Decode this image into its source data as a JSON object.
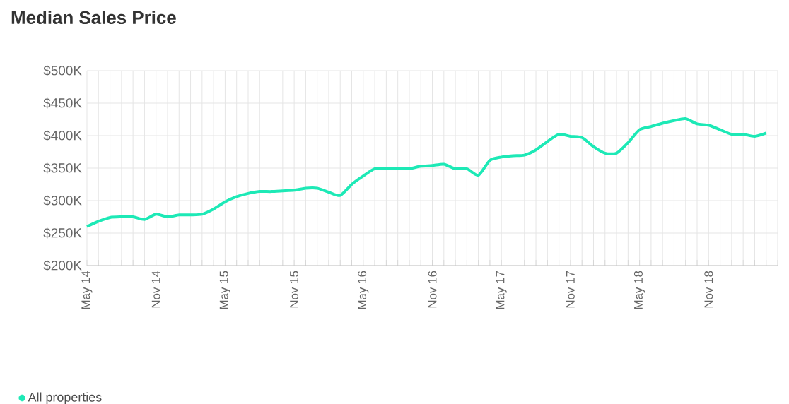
{
  "chart_data": {
    "type": "line",
    "title": "Median Sales Price",
    "x": [
      "2014-05",
      "2014-06",
      "2014-07",
      "2014-08",
      "2014-09",
      "2014-10",
      "2014-11",
      "2014-12",
      "2015-01",
      "2015-02",
      "2015-03",
      "2015-04",
      "2015-05",
      "2015-06",
      "2015-07",
      "2015-08",
      "2015-09",
      "2015-10",
      "2015-11",
      "2015-12",
      "2016-01",
      "2016-02",
      "2016-03",
      "2016-04",
      "2016-05",
      "2016-06",
      "2016-07",
      "2016-08",
      "2016-09",
      "2016-10",
      "2016-11",
      "2016-12",
      "2017-01",
      "2017-02",
      "2017-03",
      "2017-04",
      "2017-05",
      "2017-06",
      "2017-07",
      "2017-08",
      "2017-09",
      "2017-10",
      "2017-11",
      "2017-12",
      "2018-01",
      "2018-02",
      "2018-03",
      "2018-04",
      "2018-05",
      "2018-06",
      "2018-07",
      "2018-08",
      "2018-09",
      "2018-10",
      "2018-11",
      "2018-12",
      "2019-01",
      "2019-02",
      "2019-03",
      "2019-04"
    ],
    "series": [
      {
        "name": "All properties",
        "color": "#1de9b6",
        "values": [
          260,
          268,
          274,
          275,
          275,
          271,
          279,
          275,
          278,
          278,
          279,
          287,
          298,
          306,
          311,
          314,
          314,
          315,
          316,
          319,
          319,
          313,
          308,
          325,
          338,
          349,
          349,
          349,
          349,
          353,
          354,
          356,
          349,
          349,
          339,
          362,
          367,
          369,
          370,
          378,
          391,
          402,
          399,
          397,
          383,
          373,
          373,
          389,
          409,
          414,
          419,
          423,
          426,
          418,
          416,
          409,
          402,
          402,
          399,
          404
        ]
      }
    ],
    "xlim": [
      "2014-05",
      "2019-05"
    ],
    "xticks": [
      {
        "value": "2014-05",
        "label": "May 14"
      },
      {
        "value": "2014-06",
        "label": null
      },
      {
        "value": "2014-07",
        "label": null
      },
      {
        "value": "2014-08",
        "label": null
      },
      {
        "value": "2014-09",
        "label": null
      },
      {
        "value": "2014-10",
        "label": null
      },
      {
        "value": "2014-11",
        "label": "Nov 14"
      },
      {
        "value": "2014-12",
        "label": null
      },
      {
        "value": "2015-01",
        "label": null
      },
      {
        "value": "2015-02",
        "label": null
      },
      {
        "value": "2015-03",
        "label": null
      },
      {
        "value": "2015-04",
        "label": null
      },
      {
        "value": "2015-05",
        "label": "May 15"
      },
      {
        "value": "2015-06",
        "label": null
      },
      {
        "value": "2015-07",
        "label": null
      },
      {
        "value": "2015-08",
        "label": null
      },
      {
        "value": "2015-09",
        "label": null
      },
      {
        "value": "2015-10",
        "label": null
      },
      {
        "value": "2015-11",
        "label": "Nov 15"
      },
      {
        "value": "2015-12",
        "label": null
      },
      {
        "value": "2016-01",
        "label": null
      },
      {
        "value": "2016-02",
        "label": null
      },
      {
        "value": "2016-03",
        "label": null
      },
      {
        "value": "2016-04",
        "label": null
      },
      {
        "value": "2016-05",
        "label": "May 16"
      },
      {
        "value": "2016-06",
        "label": null
      },
      {
        "value": "2016-07",
        "label": null
      },
      {
        "value": "2016-08",
        "label": null
      },
      {
        "value": "2016-09",
        "label": null
      },
      {
        "value": "2016-10",
        "label": null
      },
      {
        "value": "2016-11",
        "label": "Nov 16"
      },
      {
        "value": "2016-12",
        "label": null
      },
      {
        "value": "2017-01",
        "label": null
      },
      {
        "value": "2017-02",
        "label": null
      },
      {
        "value": "2017-03",
        "label": null
      },
      {
        "value": "2017-04",
        "label": null
      },
      {
        "value": "2017-05",
        "label": "May 17"
      },
      {
        "value": "2017-06",
        "label": null
      },
      {
        "value": "2017-07",
        "label": null
      },
      {
        "value": "2017-08",
        "label": null
      },
      {
        "value": "2017-09",
        "label": null
      },
      {
        "value": "2017-10",
        "label": null
      },
      {
        "value": "2017-11",
        "label": "Nov 17"
      },
      {
        "value": "2017-12",
        "label": null
      },
      {
        "value": "2018-01",
        "label": null
      },
      {
        "value": "2018-02",
        "label": null
      },
      {
        "value": "2018-03",
        "label": null
      },
      {
        "value": "2018-04",
        "label": null
      },
      {
        "value": "2018-05",
        "label": "May 18"
      },
      {
        "value": "2018-06",
        "label": null
      },
      {
        "value": "2018-07",
        "label": null
      },
      {
        "value": "2018-08",
        "label": null
      },
      {
        "value": "2018-09",
        "label": null
      },
      {
        "value": "2018-10",
        "label": null
      },
      {
        "value": "2018-11",
        "label": "Nov 18"
      },
      {
        "value": "2018-12",
        "label": null
      },
      {
        "value": "2019-01",
        "label": null
      },
      {
        "value": "2019-02",
        "label": null
      },
      {
        "value": "2019-03",
        "label": null
      },
      {
        "value": "2019-04",
        "label": null
      },
      {
        "value": "2019-05",
        "label": null
      }
    ],
    "ylim": [
      200,
      500
    ],
    "yticks": [
      {
        "value": 200,
        "label": "$200K"
      },
      {
        "value": 250,
        "label": "$250K"
      },
      {
        "value": 300,
        "label": "$300K"
      },
      {
        "value": 350,
        "label": "$350K"
      },
      {
        "value": 400,
        "label": "$400K"
      },
      {
        "value": 450,
        "label": "$450K"
      },
      {
        "value": 500,
        "label": "$500K"
      }
    ],
    "grid": true,
    "legend": "bottom left",
    "marker": "none",
    "line_style": "solid"
  }
}
